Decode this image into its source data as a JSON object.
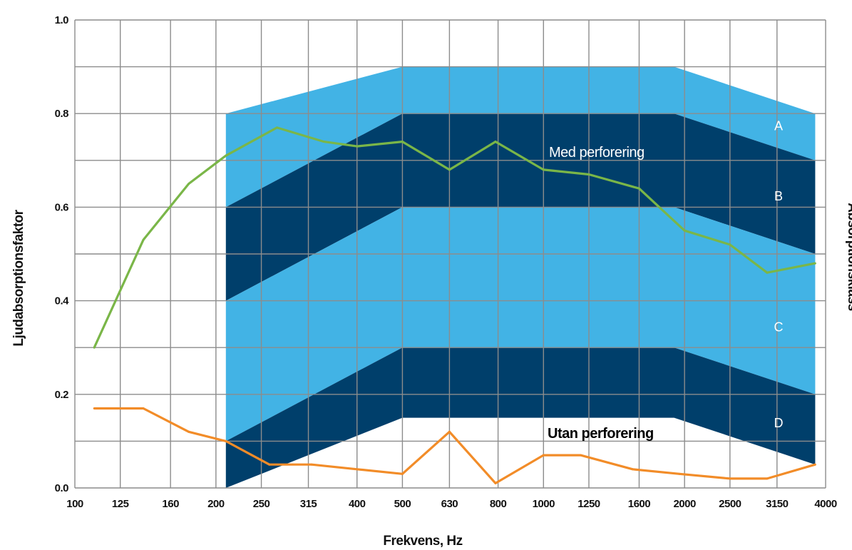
{
  "chart_data": {
    "type": "line",
    "xlabel": "Frekvens, Hz",
    "ylabel": "Ljudabsorptionsfaktor",
    "ylabel_right": "Absorptionsklass",
    "x_scale": "log",
    "categories": [
      "100",
      "125",
      "160",
      "200",
      "250",
      "315",
      "400",
      "500",
      "630",
      "800",
      "1000",
      "1250",
      "1600",
      "2000",
      "2500",
      "3150",
      "4000"
    ],
    "yticks": [
      "0.0",
      "0.2",
      "0.4",
      "0.6",
      "0.8",
      "1.0"
    ],
    "ylim": [
      0,
      1.0
    ],
    "xlim": [
      100,
      4000
    ],
    "grid": true,
    "classes": [
      {
        "name": "A",
        "points": [
          [
            210,
            0.8
          ],
          [
            500,
            0.9
          ],
          [
            1900,
            0.9
          ],
          [
            3800,
            0.8
          ],
          [
            3800,
            0.7
          ],
          [
            1900,
            0.8
          ],
          [
            500,
            0.8
          ],
          [
            210,
            0.6
          ]
        ]
      },
      {
        "name": "B",
        "points": [
          [
            210,
            0.6
          ],
          [
            500,
            0.8
          ],
          [
            1900,
            0.8
          ],
          [
            3800,
            0.7
          ],
          [
            3800,
            0.5
          ],
          [
            1900,
            0.6
          ],
          [
            500,
            0.6
          ],
          [
            210,
            0.4
          ]
        ]
      },
      {
        "name": "C",
        "points": [
          [
            210,
            0.4
          ],
          [
            500,
            0.6
          ],
          [
            1900,
            0.6
          ],
          [
            3800,
            0.5
          ],
          [
            3800,
            0.2
          ],
          [
            1900,
            0.3
          ],
          [
            500,
            0.3
          ],
          [
            210,
            0.1
          ]
        ]
      },
      {
        "name": "D",
        "points": [
          [
            210,
            0.1
          ],
          [
            500,
            0.3
          ],
          [
            1900,
            0.3
          ],
          [
            3800,
            0.2
          ],
          [
            3800,
            0.05
          ],
          [
            1900,
            0.15
          ],
          [
            500,
            0.15
          ],
          [
            210,
            0.0
          ]
        ]
      }
    ],
    "series": [
      {
        "name": "Med perforering",
        "color": "#7ab648",
        "x": [
          110,
          140,
          175,
          210,
          270,
          340,
          400,
          500,
          630,
          790,
          1000,
          1250,
          1600,
          2000,
          2500,
          3000,
          3800
        ],
        "values": [
          0.3,
          0.53,
          0.65,
          0.71,
          0.77,
          0.74,
          0.73,
          0.74,
          0.68,
          0.74,
          0.68,
          0.67,
          0.64,
          0.55,
          0.52,
          0.46,
          0.48
        ]
      },
      {
        "name": "Utan perforering",
        "color": "#f28c28",
        "x": [
          110,
          140,
          175,
          210,
          260,
          320,
          400,
          500,
          630,
          790,
          1000,
          1200,
          1550,
          1950,
          2500,
          3000,
          3800
        ],
        "values": [
          0.17,
          0.17,
          0.12,
          0.1,
          0.05,
          0.05,
          0.04,
          0.03,
          0.12,
          0.01,
          0.07,
          0.07,
          0.04,
          0.03,
          0.02,
          0.02,
          0.05
        ]
      }
    ],
    "colors": {
      "band_light": "#42b3e5",
      "band_dark": "#003f6b",
      "grid": "#8c8c8c"
    }
  }
}
